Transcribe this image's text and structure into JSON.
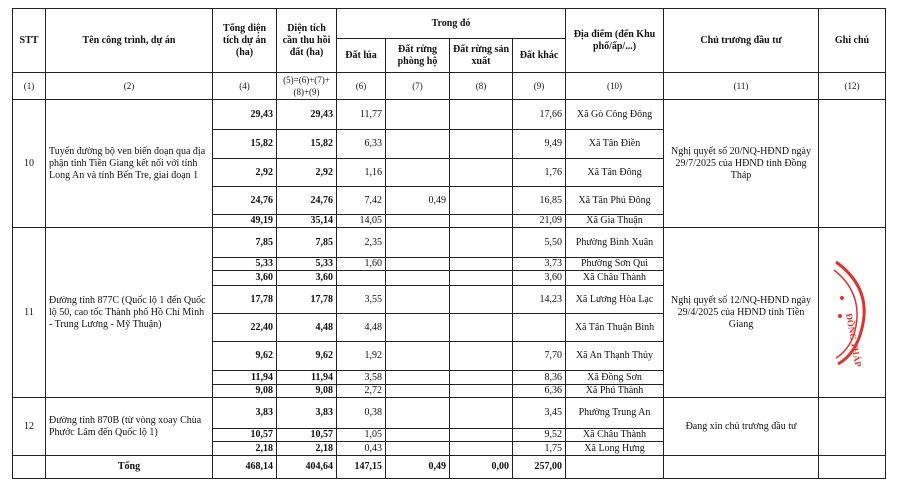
{
  "headers": {
    "stt": "STT",
    "name": "Tên công trình, dự án",
    "total_area": "Tổng diện tích dự án (ha)",
    "recover_area": "Diện tích cần thu hồi đất (ha)",
    "of_which": "Trong đó",
    "rice": "Đất lúa",
    "protect_forest": "Đất rừng phòng hộ",
    "prod_forest": "Đất rừng sản xuất",
    "other": "Đất khác",
    "location": "Địa điểm (đến Khu phố/ấp/...)",
    "policy": "Chủ trương đầu tư",
    "note": "Ghi chú"
  },
  "codes": [
    "(1)",
    "(2)",
    "(4)",
    "(5)=(6)+(7)+(8)+(9)",
    "(6)",
    "(7)",
    "(8)",
    "(9)",
    "(10)",
    "(11)",
    "(12)"
  ],
  "groups": [
    {
      "stt": "10",
      "name": "Tuyến đường bộ ven biển đoạn qua địa phận tỉnh Tiền Giang kết nối với tỉnh Long An và tỉnh Bến Tre, giai đoạn 1",
      "policy": "Nghị quyết số 20/NQ-HĐND ngày 29/7/2025 của HĐND tỉnh Đồng Tháp",
      "rows": [
        {
          "c4": "29,43",
          "c5": "29,43",
          "c6": "11,77",
          "c7": "",
          "c8": "",
          "c9": "17,66",
          "c10": "Xã Gò Công Đông"
        },
        {
          "c4": "15,82",
          "c5": "15,82",
          "c6": "6,33",
          "c7": "",
          "c8": "",
          "c9": "9,49",
          "c10": "Xã Tân Điền"
        },
        {
          "c4": "2,92",
          "c5": "2,92",
          "c6": "1,16",
          "c7": "",
          "c8": "",
          "c9": "1,76",
          "c10": "Xã Tân Đông"
        },
        {
          "c4": "24,76",
          "c5": "24,76",
          "c6": "7,42",
          "c7": "0,49",
          "c8": "",
          "c9": "16,85",
          "c10": "Xã Tân Phú Đông"
        },
        {
          "c4": "49,19",
          "c5": "35,14",
          "c6": "14,05",
          "c7": "",
          "c8": "",
          "c9": "21,09",
          "c10": "Xã Gia Thuận"
        }
      ]
    },
    {
      "stt": "11",
      "name": "Đường tỉnh 877C (Quốc lộ 1 đến Quốc lộ 50, cao tốc Thành phố Hồ Chí Minh - Trung Lương - Mỹ Thuận)",
      "policy": "Nghị quyết số 12/NQ-HĐND ngày 29/4/2025 của HĐND tỉnh Tiền Giang",
      "stamp": true,
      "rows": [
        {
          "c4": "7,85",
          "c5": "7,85",
          "c6": "2,35",
          "c7": "",
          "c8": "",
          "c9": "5,50",
          "c10": "Phường Bình Xuân"
        },
        {
          "c4": "5,33",
          "c5": "5,33",
          "c6": "1,60",
          "c7": "",
          "c8": "",
          "c9": "3,73",
          "c10": "Phường Sơn Qui"
        },
        {
          "c4": "3,60",
          "c5": "3,60",
          "c6": "",
          "c7": "",
          "c8": "",
          "c9": "3,60",
          "c10": "Xã Châu Thành"
        },
        {
          "c4": "17,78",
          "c5": "17,78",
          "c6": "3,55",
          "c7": "",
          "c8": "",
          "c9": "14,23",
          "c10": "Xã Lương Hòa Lạc"
        },
        {
          "c4": "22,40",
          "c5": "4,48",
          "c6": "4,48",
          "c7": "",
          "c8": "",
          "c9": "",
          "c10": "Xã Tân Thuận Bình"
        },
        {
          "c4": "9,62",
          "c5": "9,62",
          "c6": "1,92",
          "c7": "",
          "c8": "",
          "c9": "7,70",
          "c10": "Xã An Thạnh Thủy"
        },
        {
          "c4": "11,94",
          "c5": "11,94",
          "c6": "3,58",
          "c7": "",
          "c8": "",
          "c9": "8,36",
          "c10": "Xã Đồng Sơn"
        },
        {
          "c4": "9,08",
          "c5": "9,08",
          "c6": "2,72",
          "c7": "",
          "c8": "",
          "c9": "6,36",
          "c10": "Xã Phú Thành"
        }
      ]
    },
    {
      "stt": "12",
      "name": "Đường tỉnh 870B (từ vòng xoay Chùa Phước Lâm đến Quốc lộ 1)",
      "policy": "Đang xin chủ trương đầu tư",
      "rows": [
        {
          "c4": "3,83",
          "c5": "3,83",
          "c6": "0,38",
          "c7": "",
          "c8": "",
          "c9": "3,45",
          "c10": "Phường Trung An"
        },
        {
          "c4": "10,57",
          "c5": "10,57",
          "c6": "1,05",
          "c7": "",
          "c8": "",
          "c9": "9,52",
          "c10": "Xã Châu Thành"
        },
        {
          "c4": "2,18",
          "c5": "2,18",
          "c6": "0,43",
          "c7": "",
          "c8": "",
          "c9": "1,75",
          "c10": "Xã Long Hưng"
        }
      ]
    }
  ],
  "total": {
    "label": "Tổng",
    "c4": "468,14",
    "c5": "404,64",
    "c6": "147,15",
    "c7": "0,49",
    "c8": "0,00",
    "c9": "257,00"
  },
  "stamp": {
    "text": "THÁP · ĐỒNG",
    "color": "#e0332e"
  }
}
